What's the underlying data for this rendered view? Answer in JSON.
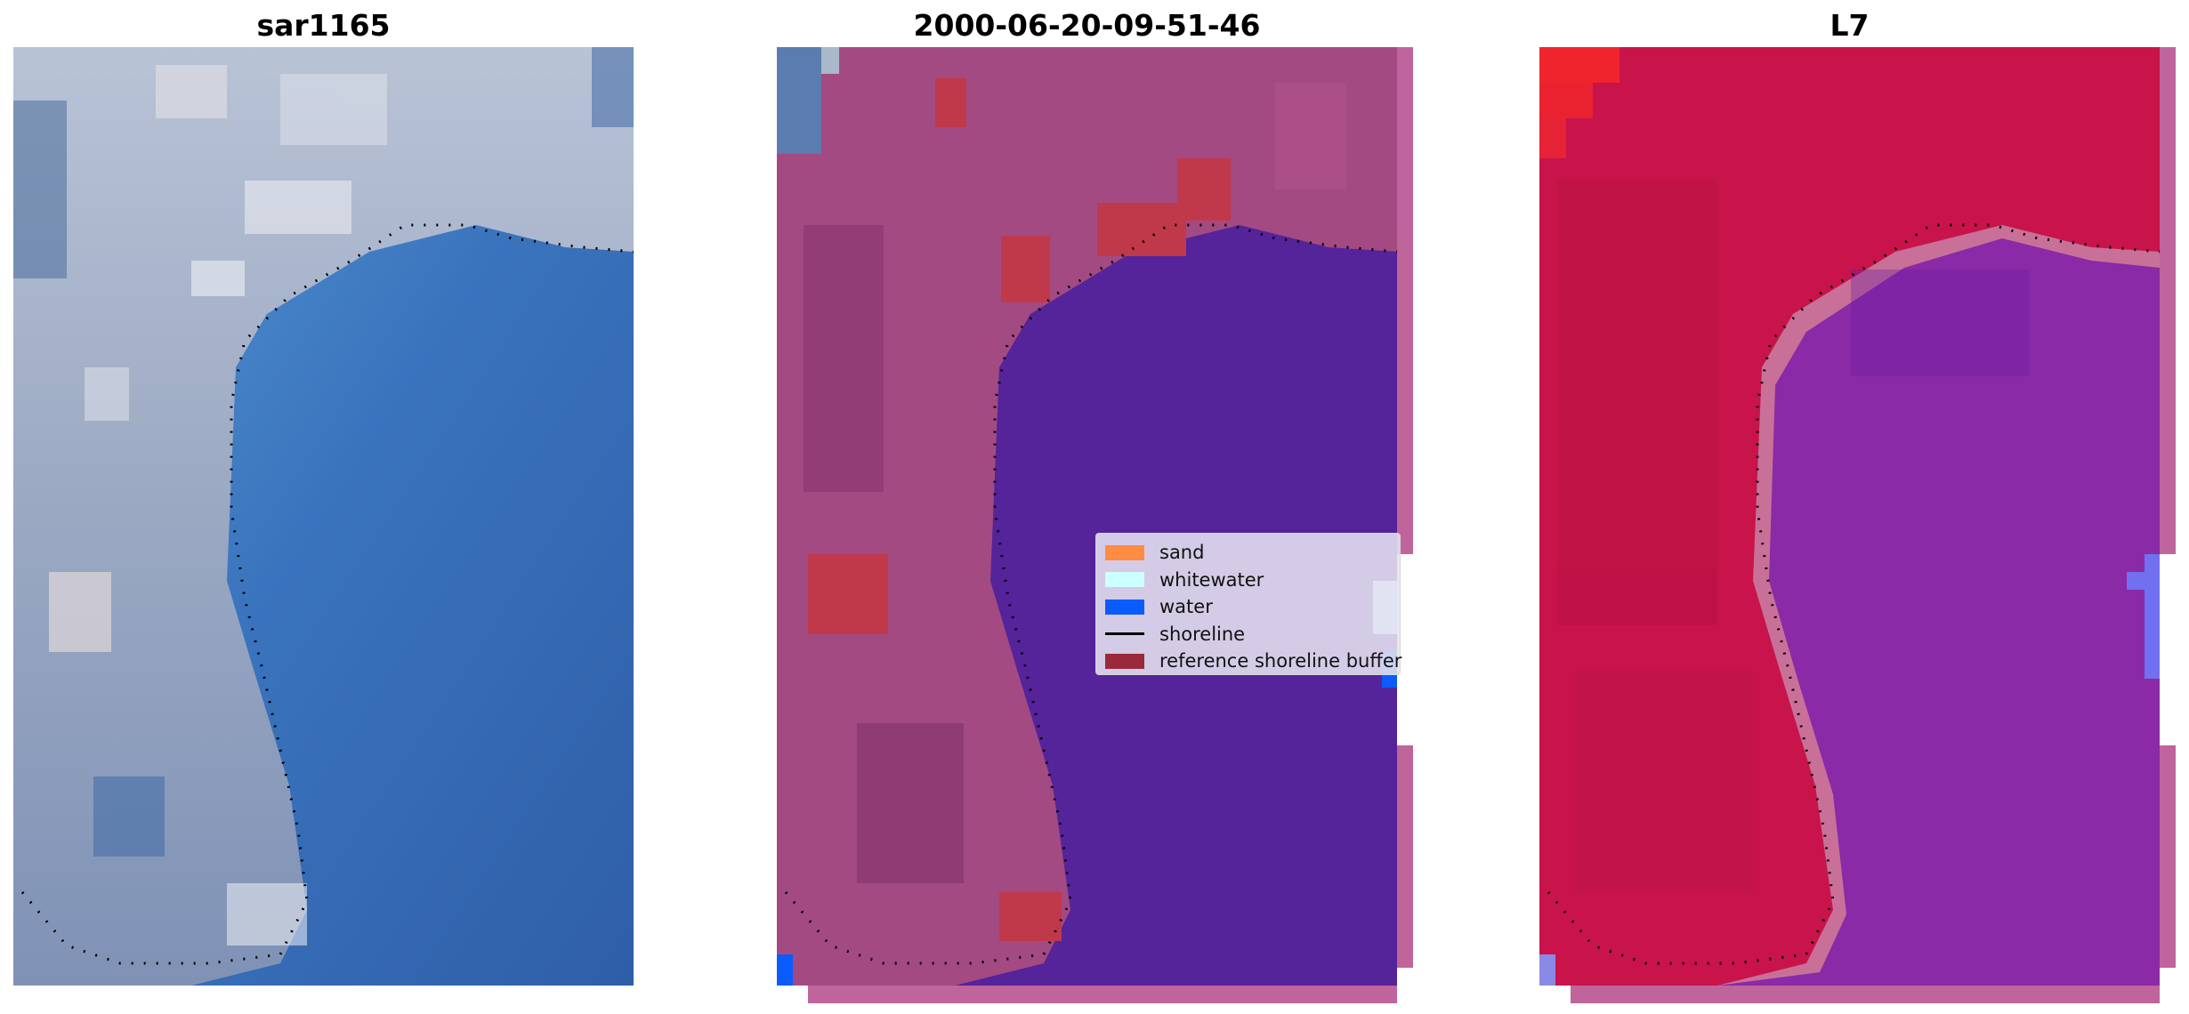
{
  "panels": [
    {
      "title": "sar1165"
    },
    {
      "title": "2000-06-20-09-51-46"
    },
    {
      "title": "L7"
    }
  ],
  "legend": {
    "items": [
      {
        "label": "sand",
        "color": "#ff8c42",
        "kind": "patch"
      },
      {
        "label": "whitewater",
        "color": "#ccffff",
        "kind": "patch"
      },
      {
        "label": "water",
        "color": "#0a5cff",
        "kind": "patch"
      },
      {
        "label": "shoreline",
        "color": "#000000",
        "kind": "line"
      },
      {
        "label": "reference shoreline buffer",
        "color": "#9a2a3a",
        "kind": "patch"
      }
    ]
  },
  "colors": {
    "ocean_blue": "#3a6fb5",
    "classified_water": "#55239a",
    "classified_land": "#a34a82",
    "buffer_red": "#c0394a",
    "ndwi_land": "#c8144a",
    "ndwi_water": "#8a2aa6",
    "panel_edge_pink": "#c0649c"
  }
}
